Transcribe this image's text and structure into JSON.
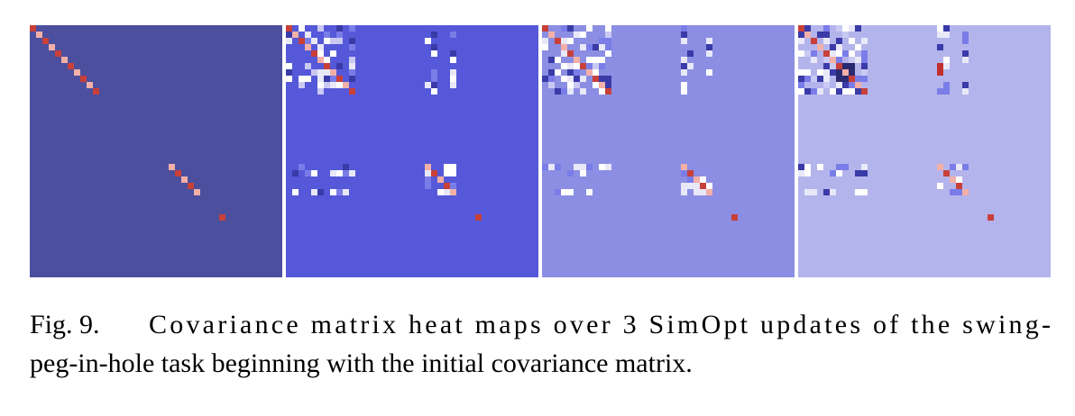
{
  "figure": {
    "caption": {
      "label": "Fig. 9.",
      "lines": [
        "Covariance matrix heat maps over 3 SimOpt updates of the swing-",
        "peg-in-hole task beginning with the initial covariance matrix."
      ]
    }
  }
}
